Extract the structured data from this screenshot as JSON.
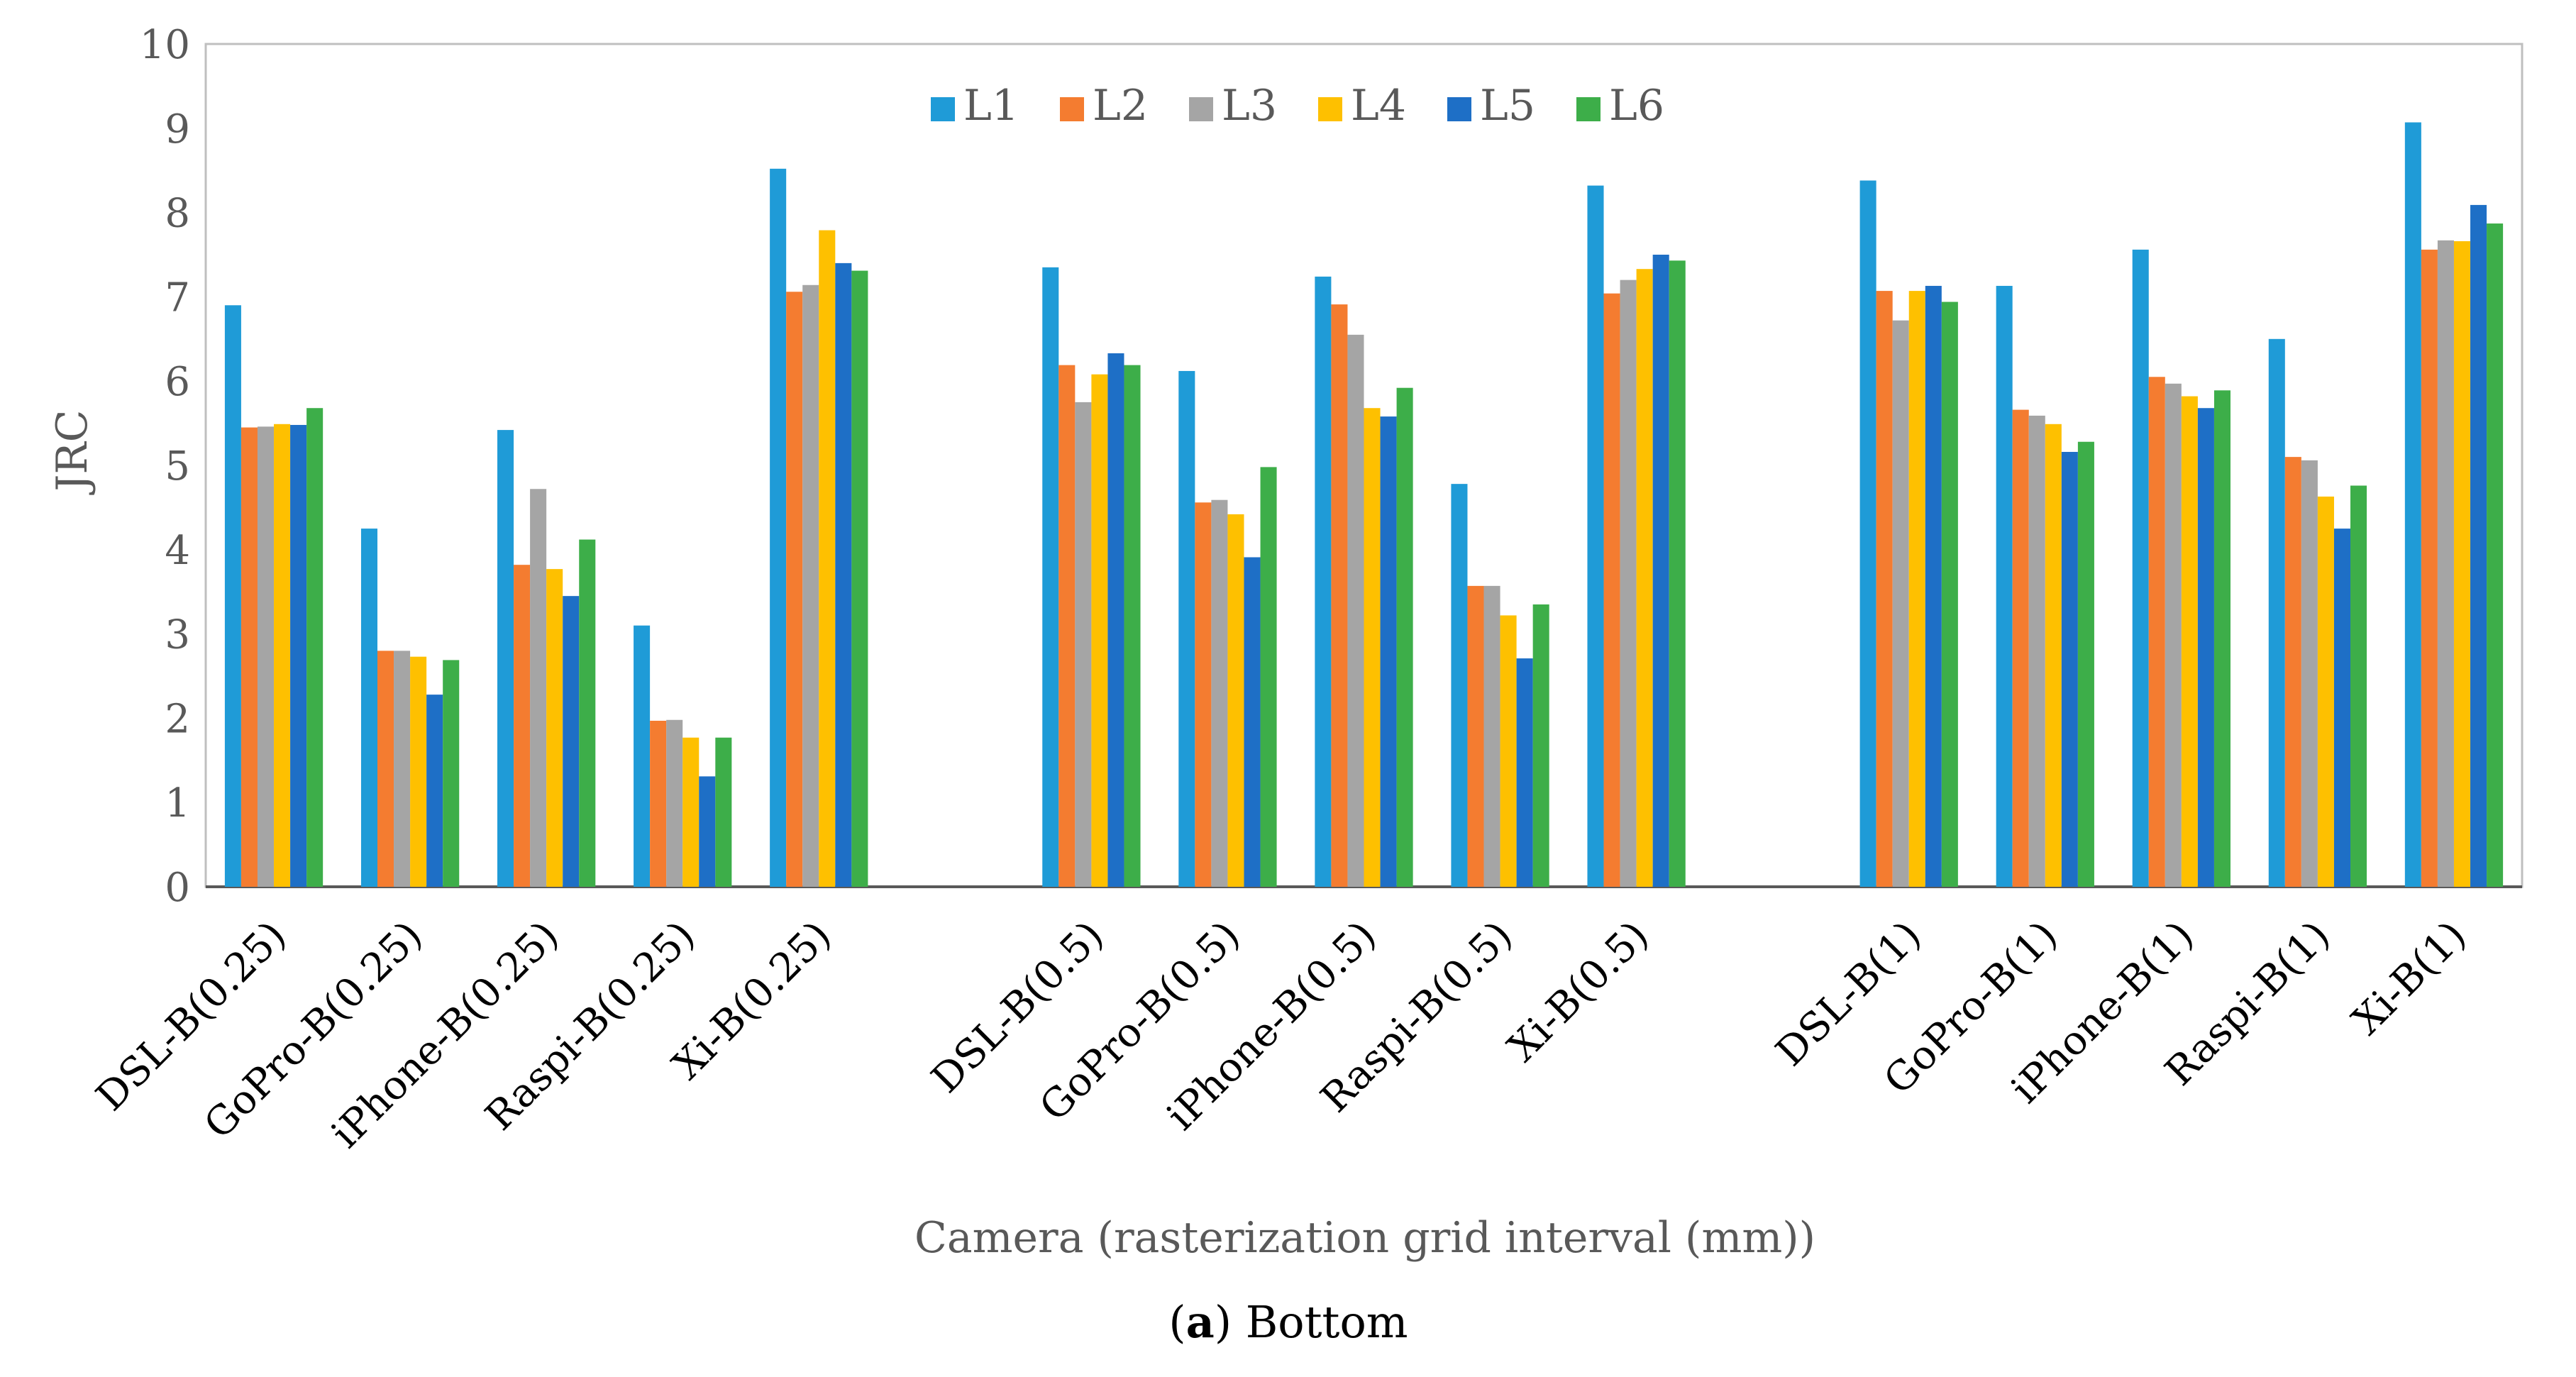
{
  "chart_data": {
    "type": "bar",
    "title": "",
    "xlabel": "Camera (rasterization grid interval (mm))",
    "ylabel": "JRC",
    "ylim": [
      0,
      10
    ],
    "yticks": [
      "0",
      "1",
      "2",
      "3",
      "4",
      "5",
      "6",
      "7",
      "8",
      "9",
      "10"
    ],
    "legend_position": "top-center",
    "grid": false,
    "groups": [
      {
        "categories": [
          "DSL-B(0.25)",
          "GoPro-B(0.25)",
          "iPhone-B(0.25)",
          "Raspi-B(0.25)",
          "Xi-B(0.25)"
        ]
      },
      {
        "categories": [
          "DSL-B(0.5)",
          "GoPro-B(0.5)",
          "iPhone-B(0.5)",
          "Raspi-B(0.5)",
          "Xi-B(0.5)"
        ]
      },
      {
        "categories": [
          "DSL-B(1)",
          "GoPro-B(1)",
          "iPhone-B(1)",
          "Raspi-B(1)",
          "Xi-B(1)"
        ]
      }
    ],
    "categories": [
      "DSL-B(0.25)",
      "GoPro-B(0.25)",
      "iPhone-B(0.25)",
      "Raspi-B(0.25)",
      "Xi-B(0.25)",
      "DSL-B(0.5)",
      "GoPro-B(0.5)",
      "iPhone-B(0.5)",
      "Raspi-B(0.5)",
      "Xi-B(0.5)",
      "DSL-B(1)",
      "GoPro-B(1)",
      "iPhone-B(1)",
      "Raspi-B(1)",
      "Xi-B(1)"
    ],
    "series": [
      {
        "name": "L1",
        "color": "#1F9BD7",
        "values": [
          6.9,
          4.25,
          5.42,
          3.1,
          8.52,
          7.35,
          6.12,
          7.24,
          4.78,
          8.32,
          8.38,
          7.13,
          7.56,
          6.5,
          9.07
        ]
      },
      {
        "name": "L2",
        "color": "#F47C30",
        "values": [
          5.45,
          2.8,
          3.82,
          1.97,
          7.06,
          6.19,
          4.56,
          6.91,
          3.57,
          7.04,
          7.07,
          5.66,
          6.05,
          5.1,
          7.56
        ]
      },
      {
        "name": "L3",
        "color": "#A5A5A5",
        "values": [
          5.46,
          2.8,
          4.72,
          1.98,
          7.14,
          5.75,
          4.59,
          6.55,
          3.57,
          7.2,
          6.72,
          5.59,
          5.97,
          5.06,
          7.67
        ]
      },
      {
        "name": "L4",
        "color": "#FEC000",
        "values": [
          5.49,
          2.73,
          3.77,
          1.77,
          7.79,
          6.08,
          4.42,
          5.68,
          3.22,
          7.33,
          7.07,
          5.49,
          5.82,
          4.63,
          7.66
        ]
      },
      {
        "name": "L5",
        "color": "#1E6FC6",
        "values": [
          5.48,
          2.28,
          3.45,
          1.31,
          7.4,
          6.33,
          3.91,
          5.58,
          2.71,
          7.5,
          7.13,
          5.16,
          5.68,
          4.25,
          8.09
        ]
      },
      {
        "name": "L6",
        "color": "#3DAE49",
        "values": [
          5.68,
          2.69,
          4.12,
          1.77,
          7.31,
          6.19,
          4.98,
          5.92,
          3.35,
          7.43,
          6.94,
          5.28,
          5.89,
          4.76,
          7.87
        ]
      }
    ]
  },
  "caption": {
    "label": "a",
    "text": " Bottom",
    "open": "(",
    "close": ")"
  }
}
